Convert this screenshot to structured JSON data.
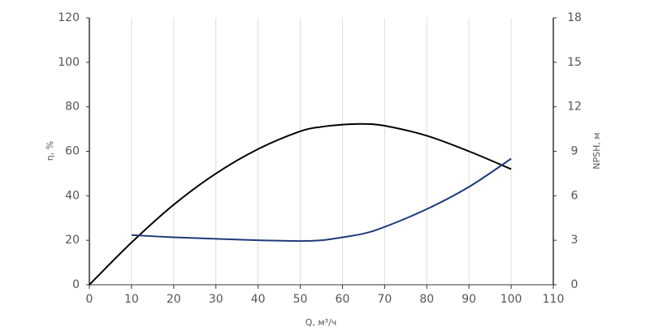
{
  "chart_data": {
    "type": "line",
    "x_label": "Q, м³/ч",
    "y_label": "η, %",
    "y2_label": "NPSH, м",
    "x": [
      0,
      10,
      20,
      30,
      40,
      50,
      55,
      60,
      65,
      70,
      80,
      90,
      100
    ],
    "series": [
      {
        "name": "η",
        "color": "#000000",
        "values": [
          0,
          19,
          36,
          50,
          61,
          69,
          71,
          72,
          72.3,
          71.5,
          67,
          60,
          52
        ]
      },
      {
        "name": "NPSH",
        "color": "#1f3a7a",
        "axis": "y2",
        "values": [
          null,
          3.35,
          3.2,
          3.1,
          3.0,
          2.95,
          3.0,
          3.2,
          3.45,
          3.9,
          5.1,
          6.6,
          8.5
        ]
      }
    ],
    "xlim": [
      0,
      110
    ],
    "xticks": [
      0,
      10,
      20,
      30,
      40,
      50,
      60,
      70,
      80,
      90,
      100,
      110
    ],
    "ylim": [
      0,
      120
    ],
    "yticks": [
      0,
      20,
      40,
      60,
      80,
      100,
      120
    ],
    "y2lim": [
      0,
      18
    ],
    "y2ticks": [
      0,
      3,
      6,
      9,
      12,
      15,
      18
    ],
    "grid": true
  }
}
